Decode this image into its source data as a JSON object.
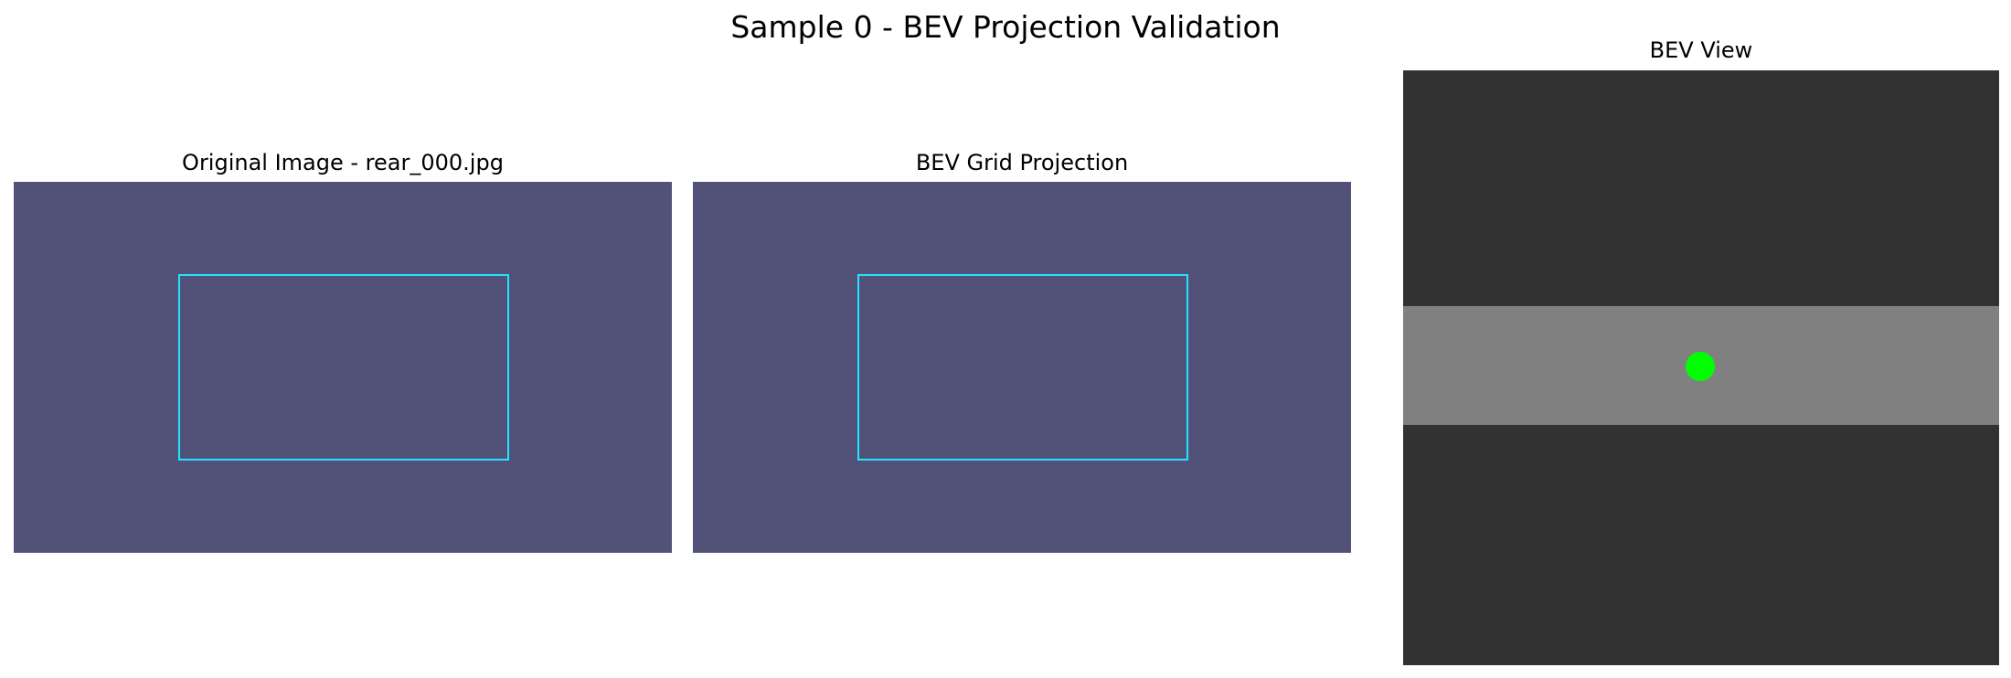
{
  "figure": {
    "title": "Sample 0 - BEV Projection Validation"
  },
  "panels": {
    "original": {
      "title": "Original Image - rear_000.jpg"
    },
    "projection": {
      "title": "BEV Grid Projection"
    },
    "bev": {
      "title": "BEV View"
    }
  },
  "colors": {
    "image_background": "#525278",
    "grid_outline": "#1ee6ff",
    "bev_background": "#323232",
    "road": "#808080",
    "vehicle_marker": "#00ff00"
  }
}
